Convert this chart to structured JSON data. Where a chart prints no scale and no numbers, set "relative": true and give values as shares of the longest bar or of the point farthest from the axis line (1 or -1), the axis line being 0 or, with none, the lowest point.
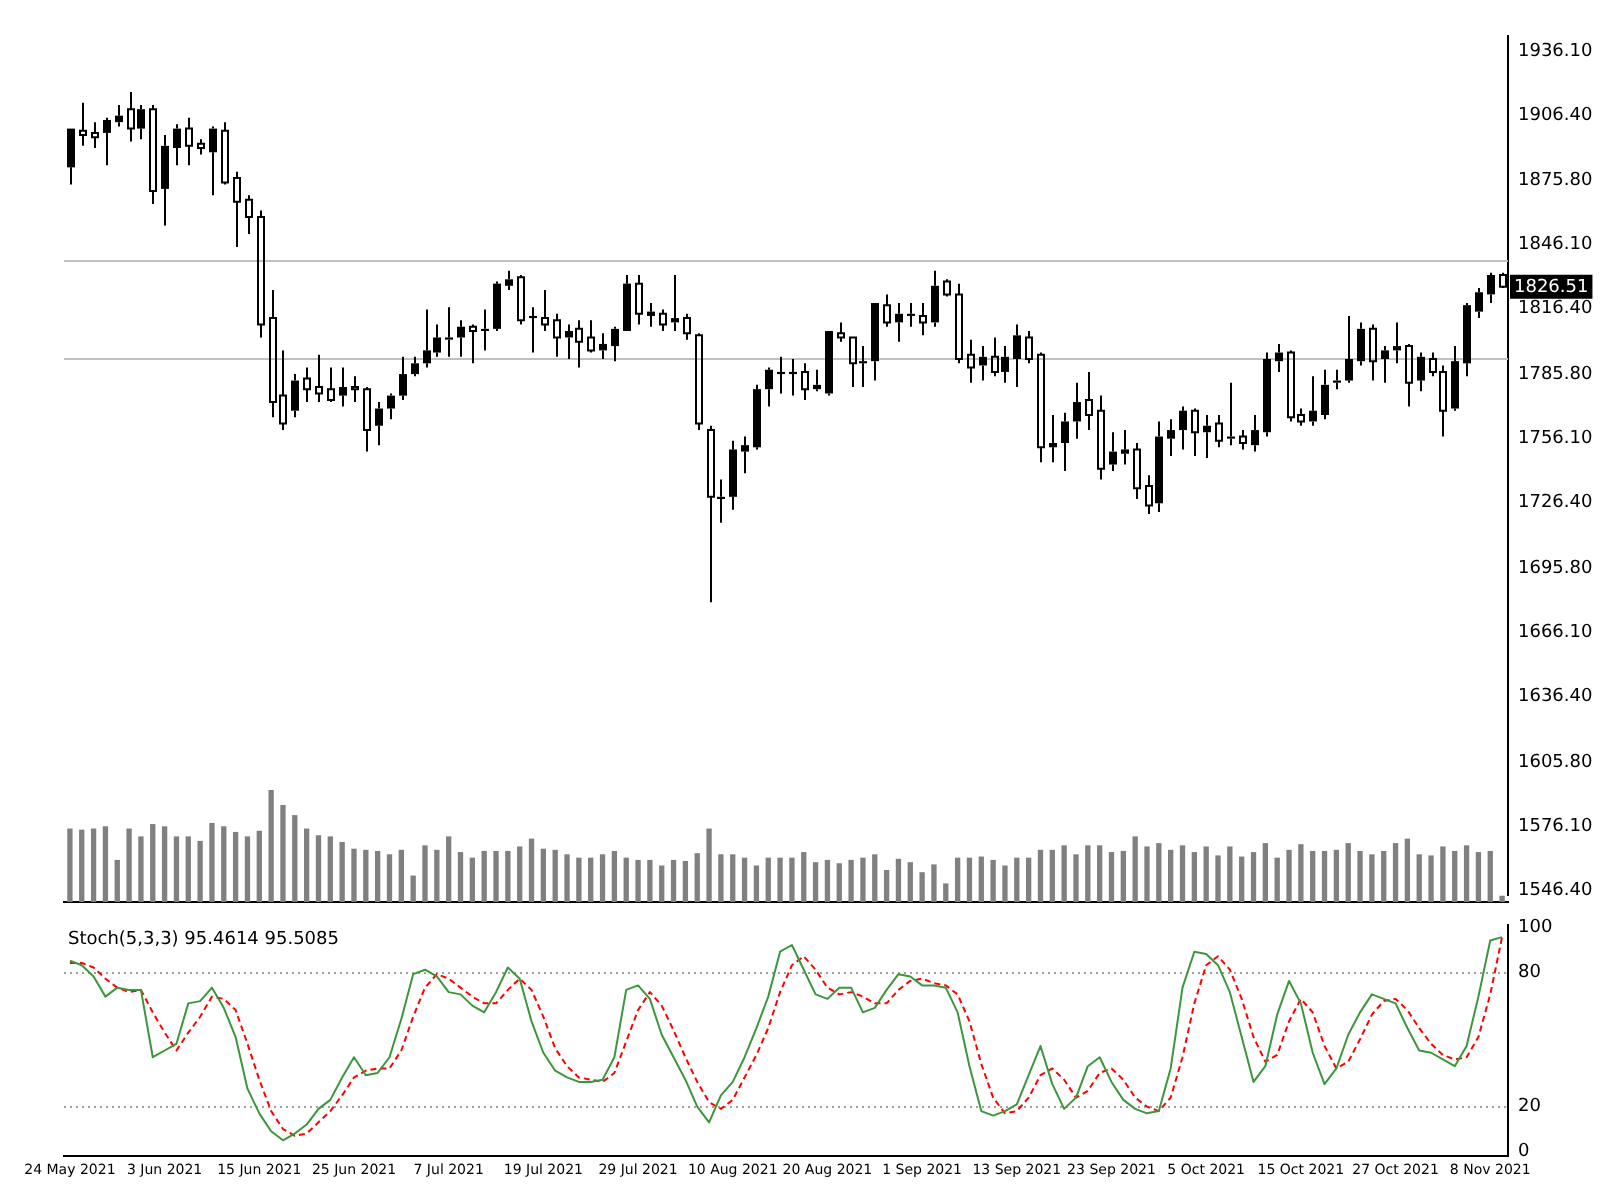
{
  "chart_data": [
    {
      "type": "candlestick",
      "color": "#000000",
      "tick_labels": "y",
      "categories": [
        null,
        null,
        null,
        null,
        null,
        null,
        null,
        null,
        null,
        null,
        null,
        null,
        null,
        null,
        null,
        null,
        null,
        null,
        null,
        null,
        null,
        null,
        null,
        null,
        null,
        null,
        null,
        null,
        null,
        null,
        null,
        null,
        null,
        null,
        null,
        null,
        null,
        null,
        null,
        null,
        null,
        null,
        null,
        null,
        null,
        null,
        null,
        null,
        null,
        null,
        null,
        null,
        null,
        null,
        null,
        null,
        null,
        null,
        null,
        null,
        null,
        null,
        null,
        null,
        null,
        null,
        null,
        null,
        null,
        null,
        null,
        null,
        null,
        null,
        null,
        null,
        null,
        null,
        null,
        null,
        null,
        null,
        null,
        null,
        null,
        null,
        null,
        null,
        null,
        null,
        null,
        null,
        null,
        null,
        null,
        null,
        null,
        null,
        null,
        null,
        null,
        null,
        null,
        null,
        null,
        null,
        null,
        null,
        null,
        null,
        null,
        null,
        null,
        null,
        null,
        null,
        null,
        null,
        null,
        null,
        null,
        null
      ],
      "ohlc": [
        [
          1882,
          1900,
          1874,
          1900
        ],
        [
          1899,
          1912,
          1892,
          1897
        ],
        [
          1898,
          1903,
          1891,
          1896
        ],
        [
          1898,
          1905,
          1883,
          1904
        ],
        [
          1903,
          1911,
          1901,
          1906
        ],
        [
          1909,
          1917,
          1894,
          1900
        ],
        [
          1900,
          1911,
          1895,
          1909
        ],
        [
          1909,
          1911,
          1865,
          1871
        ],
        [
          1872,
          1897,
          1855,
          1892
        ],
        [
          1891,
          1902,
          1883,
          1900
        ],
        [
          1900,
          1905,
          1883,
          1892
        ],
        [
          1893,
          1895,
          1888,
          1891
        ],
        [
          1889,
          1901,
          1869,
          1900
        ],
        [
          1899,
          1903,
          1874,
          1875
        ],
        [
          1877,
          1880,
          1845,
          1866
        ],
        [
          1867,
          1869,
          1851,
          1859
        ],
        [
          1859,
          1862,
          1803,
          1809
        ],
        [
          1812,
          1825,
          1766,
          1773
        ],
        [
          1776,
          1797,
          1760,
          1763
        ],
        [
          1769,
          1786,
          1766,
          1783
        ],
        [
          1784,
          1789,
          1773,
          1779
        ],
        [
          1780,
          1795,
          1773,
          1777
        ],
        [
          1779,
          1789,
          1773,
          1774
        ],
        [
          1776,
          1789,
          1771,
          1780
        ],
        [
          1780,
          1785,
          1773,
          1779
        ],
        [
          1779,
          1780,
          1750,
          1760
        ],
        [
          1762,
          1773,
          1753,
          1770
        ],
        [
          1770,
          1777,
          1765,
          1776
        ],
        [
          1776,
          1794,
          1774,
          1786
        ],
        [
          1786,
          1794,
          1785,
          1791
        ],
        [
          1791,
          1816,
          1789,
          1797
        ],
        [
          1796,
          1809,
          1794,
          1803
        ],
        [
          1802,
          1817,
          1794,
          1803
        ],
        [
          1803,
          1811,
          1794,
          1808
        ],
        [
          1808,
          1809,
          1791,
          1806
        ],
        [
          1806,
          1816,
          1797,
          1807
        ],
        [
          1807,
          1829,
          1806,
          1828
        ],
        [
          1827,
          1834,
          1825,
          1830
        ],
        [
          1831,
          1832,
          1809,
          1811
        ],
        [
          1812,
          1817,
          1796,
          1813
        ],
        [
          1812,
          1825,
          1806,
          1809
        ],
        [
          1811,
          1814,
          1794,
          1803
        ],
        [
          1803,
          1809,
          1793,
          1806
        ],
        [
          1807,
          1811,
          1789,
          1801
        ],
        [
          1803,
          1811,
          1796,
          1797
        ],
        [
          1797,
          1805,
          1793,
          1800
        ],
        [
          1799,
          1808,
          1792,
          1807
        ],
        [
          1806,
          1832,
          1806,
          1828
        ],
        [
          1828,
          1832,
          1809,
          1814
        ],
        [
          1813,
          1819,
          1808,
          1815
        ],
        [
          1814,
          1816,
          1806,
          1809
        ],
        [
          1810,
          1832,
          1806,
          1812
        ],
        [
          1812,
          1814,
          1802,
          1805
        ],
        [
          1804,
          1805,
          1760,
          1763
        ],
        [
          1760,
          1762,
          1680,
          1729
        ],
        [
          1728,
          1737,
          1717,
          1729
        ],
        [
          1729,
          1755,
          1723,
          1751
        ],
        [
          1750,
          1757,
          1740,
          1753
        ],
        [
          1752,
          1781,
          1751,
          1779
        ],
        [
          1779,
          1789,
          1771,
          1788
        ],
        [
          1786,
          1794,
          1777,
          1787
        ],
        [
          1786,
          1793,
          1776,
          1787
        ],
        [
          1787,
          1791,
          1774,
          1779
        ],
        [
          1779,
          1788,
          1778,
          1781
        ],
        [
          1777,
          1806,
          1776,
          1806
        ],
        [
          1805,
          1810,
          1801,
          1803
        ],
        [
          1803,
          1803,
          1780,
          1791
        ],
        [
          1791,
          1799,
          1780,
          1792
        ],
        [
          1792,
          1819,
          1783,
          1819
        ],
        [
          1818,
          1823,
          1808,
          1810
        ],
        [
          1810,
          1819,
          1801,
          1814
        ],
        [
          1813,
          1819,
          1808,
          1814
        ],
        [
          1813,
          1819,
          1804,
          1810
        ],
        [
          1810,
          1834,
          1808,
          1827
        ],
        [
          1829,
          1830,
          1822,
          1823
        ],
        [
          1823,
          1828,
          1791,
          1793
        ],
        [
          1795,
          1802,
          1782,
          1789
        ],
        [
          1790,
          1799,
          1783,
          1794
        ],
        [
          1794,
          1803,
          1785,
          1787
        ],
        [
          1787,
          1799,
          1782,
          1794
        ],
        [
          1793,
          1809,
          1780,
          1804
        ],
        [
          1803,
          1806,
          1791,
          1793
        ],
        [
          1795,
          1796,
          1745,
          1752
        ],
        [
          1752,
          1767,
          1745,
          1754
        ],
        [
          1754,
          1768,
          1741,
          1764
        ],
        [
          1764,
          1782,
          1756,
          1773
        ],
        [
          1774,
          1787,
          1760,
          1767
        ],
        [
          1769,
          1776,
          1737,
          1742
        ],
        [
          1744,
          1759,
          1741,
          1750
        ],
        [
          1749,
          1760,
          1744,
          1751
        ],
        [
          1751,
          1754,
          1728,
          1733
        ],
        [
          1734,
          1739,
          1721,
          1725
        ],
        [
          1726,
          1764,
          1722,
          1757
        ],
        [
          1756,
          1765,
          1748,
          1760
        ],
        [
          1760,
          1771,
          1751,
          1769
        ],
        [
          1769,
          1770,
          1748,
          1759
        ],
        [
          1759,
          1767,
          1747,
          1762
        ],
        [
          1763,
          1767,
          1752,
          1755
        ],
        [
          1756,
          1782,
          1753,
          1757
        ],
        [
          1757,
          1760,
          1751,
          1754
        ],
        [
          1753,
          1767,
          1750,
          1760
        ],
        [
          1759,
          1796,
          1757,
          1793
        ],
        [
          1792,
          1800,
          1787,
          1796
        ],
        [
          1796,
          1797,
          1764,
          1766
        ],
        [
          1767,
          1770,
          1762,
          1764
        ],
        [
          1764,
          1785,
          1762,
          1769
        ],
        [
          1767,
          1788,
          1765,
          1781
        ],
        [
          1782,
          1788,
          1779,
          1783
        ],
        [
          1783,
          1813,
          1782,
          1793
        ],
        [
          1792,
          1810,
          1790,
          1807
        ],
        [
          1807,
          1809,
          1783,
          1792
        ],
        [
          1793,
          1799,
          1782,
          1797
        ],
        [
          1797,
          1810,
          1791,
          1799
        ],
        [
          1799,
          1800,
          1771,
          1782
        ],
        [
          1783,
          1796,
          1778,
          1794
        ],
        [
          1793,
          1796,
          1785,
          1787
        ],
        [
          1787,
          1790,
          1757,
          1769
        ],
        [
          1770,
          1799,
          1769,
          1792
        ],
        [
          1791,
          1819,
          1785,
          1818
        ],
        [
          1815,
          1826,
          1812,
          1824
        ],
        [
          1823,
          1833,
          1819,
          1832
        ],
        [
          1832,
          1833,
          1826,
          1826.51
        ]
      ],
      "ylim": [
        1544,
        1943
      ],
      "yticks": [
        {
          "value": 1546.4,
          "label": "1546.40"
        },
        {
          "value": 1576.1,
          "label": "1576.10"
        },
        {
          "value": 1605.8,
          "label": "1605.80"
        },
        {
          "value": 1636.4,
          "label": "1636.40"
        },
        {
          "value": 1666.1,
          "label": "1666.10"
        },
        {
          "value": 1695.8,
          "label": "1695.80"
        },
        {
          "value": 1726.4,
          "label": "1726.40"
        },
        {
          "value": 1756.1,
          "label": "1756.10"
        },
        {
          "value": 1785.8,
          "label": "1785.80"
        },
        {
          "value": 1816.4,
          "label": "1816.40"
        },
        {
          "value": 1846.1,
          "label": "1846.10"
        },
        {
          "value": 1875.8,
          "label": "1875.80"
        },
        {
          "value": 1906.4,
          "label": "1906.40"
        },
        {
          "value": 1936.1,
          "label": "1936.10"
        }
      ],
      "ref_lines": [
        {
          "axis": "y",
          "value": 1839.4,
          "color": "#c0c0c0"
        },
        {
          "axis": "y",
          "value": 1793.3,
          "color": "#c0c0c0"
        }
      ],
      "annotations": [
        "1826.51"
      ]
    },
    {
      "type": "bar",
      "relative": true,
      "color": "#808080",
      "tick_labels": false,
      "categories": [
        null,
        null,
        null,
        null,
        null,
        null,
        null,
        null,
        null,
        null,
        null,
        null,
        null,
        null,
        null,
        null,
        null,
        null,
        null,
        null,
        null,
        null,
        null,
        null,
        null,
        null,
        null,
        null,
        null,
        null,
        null,
        null,
        null,
        null,
        null,
        null,
        null,
        null,
        null,
        null,
        null,
        null,
        null,
        null,
        null,
        null,
        null,
        null,
        null,
        null,
        null,
        null,
        null,
        null,
        null,
        null,
        null,
        null,
        null,
        null,
        null,
        null,
        null,
        null,
        null,
        null,
        null,
        null,
        null,
        null,
        null,
        null,
        null,
        null,
        null,
        null,
        null,
        null,
        null,
        null,
        null,
        null,
        null,
        null,
        null,
        null,
        null,
        null,
        null,
        null,
        null,
        null,
        null,
        null,
        null,
        null,
        null,
        null,
        null,
        null,
        null,
        null,
        null,
        null,
        null,
        null,
        null,
        null,
        null,
        null,
        null,
        null,
        null,
        null,
        null,
        null,
        null,
        null,
        null,
        null,
        null,
        null
      ],
      "values": [
        0.65,
        0.64,
        0.65,
        0.67,
        0.37,
        0.65,
        0.58,
        0.69,
        0.67,
        0.58,
        0.58,
        0.54,
        0.7,
        0.67,
        0.62,
        0.58,
        0.63,
        1,
        0.86,
        0.77,
        0.65,
        0.59,
        0.58,
        0.53,
        0.47,
        0.46,
        0.45,
        0.42,
        0.46,
        0.23,
        0.5,
        0.46,
        0.58,
        0.44,
        0.39,
        0.45,
        0.45,
        0.45,
        0.49,
        0.56,
        0.47,
        0.46,
        0.42,
        0.39,
        0.39,
        0.42,
        0.45,
        0.39,
        0.37,
        0.37,
        0.32,
        0.37,
        0.36,
        0.43,
        0.65,
        0.42,
        0.42,
        0.39,
        0.32,
        0.39,
        0.39,
        0.39,
        0.44,
        0.35,
        0.37,
        0.34,
        0.37,
        0.39,
        0.42,
        0.28,
        0.38,
        0.35,
        0.26,
        0.33,
        0.16,
        0.39,
        0.39,
        0.4,
        0.37,
        0.32,
        0.39,
        0.39,
        0.46,
        0.46,
        0.5,
        0.42,
        0.5,
        0.5,
        0.44,
        0.45,
        0.58,
        0.49,
        0.52,
        0.46,
        0.5,
        0.44,
        0.49,
        0.41,
        0.49,
        0.4,
        0.44,
        0.52,
        0.39,
        0.46,
        0.51,
        0.45,
        0.45,
        0.46,
        0.52,
        0.45,
        0.42,
        0.45,
        0.52,
        0.56,
        0.42,
        0.41,
        0.49,
        0.45,
        0.5,
        0.44,
        0.45,
        0.05
      ]
    },
    {
      "type": "line",
      "title": "Stoch(5,3,3) 95.4614 95.5085",
      "marker": "none",
      "categories": [
        "24 May 2021",
        null,
        null,
        null,
        null,
        null,
        null,
        null,
        "3 Jun 2021",
        null,
        null,
        null,
        null,
        null,
        null,
        null,
        "15 Jun 2021",
        null,
        null,
        null,
        null,
        null,
        null,
        null,
        "25 Jun 2021",
        null,
        null,
        null,
        null,
        null,
        null,
        null,
        "7 Jul 2021",
        null,
        null,
        null,
        null,
        null,
        null,
        null,
        "19 Jul 2021",
        null,
        null,
        null,
        null,
        null,
        null,
        null,
        "29 Jul 2021",
        null,
        null,
        null,
        null,
        null,
        null,
        null,
        "10 Aug 2021",
        null,
        null,
        null,
        null,
        null,
        null,
        null,
        "20 Aug 2021",
        null,
        null,
        null,
        null,
        null,
        null,
        null,
        "1 Sep 2021",
        null,
        null,
        null,
        null,
        null,
        null,
        null,
        "13 Sep 2021",
        null,
        null,
        null,
        null,
        null,
        null,
        null,
        "23 Sep 2021",
        null,
        null,
        null,
        null,
        null,
        null,
        null,
        "5 Oct 2021",
        null,
        null,
        null,
        null,
        null,
        null,
        null,
        "15 Oct 2021",
        null,
        null,
        null,
        null,
        null,
        null,
        null,
        "27 Oct 2021",
        null,
        null,
        null,
        null,
        null,
        null,
        null,
        "8 Nov 2021",
        null
      ],
      "series": [
        {
          "color": "#3c963c",
          "line_style": "solid",
          "values": [
            85,
            83,
            78,
            69,
            73,
            72,
            72,
            42,
            45,
            48,
            66,
            67,
            73,
            64,
            51,
            28,
            17,
            9,
            5,
            8,
            12,
            19,
            23,
            33,
            42,
            34,
            35,
            42,
            59,
            79,
            81,
            78,
            71,
            70,
            65,
            62,
            71,
            82,
            77,
            58,
            44,
            36,
            33,
            31,
            31,
            32,
            42,
            72,
            74,
            68,
            52,
            42,
            32,
            20,
            13,
            25,
            31,
            42,
            55,
            69,
            89,
            92,
            81,
            70,
            68,
            73,
            73,
            62,
            64,
            72,
            79,
            78,
            74,
            74,
            73,
            62,
            38,
            18,
            16,
            18,
            21,
            34,
            47,
            30,
            19,
            24,
            38,
            42,
            31,
            23,
            19,
            17,
            18,
            37,
            73,
            89,
            88,
            83,
            71,
            51,
            31,
            38,
            61,
            76,
            66,
            44,
            30,
            37,
            52,
            62,
            70,
            68,
            66,
            55,
            45,
            44,
            41,
            38,
            47,
            69,
            94,
            95.5
          ]
        },
        {
          "color": "#ff0000",
          "line_style": "dashed",
          "values": [
            84,
            84,
            82,
            77,
            73,
            71,
            72,
            62,
            53,
            45,
            53,
            60,
            69,
            68,
            63,
            48,
            32,
            18,
            10,
            7,
            8,
            13,
            18,
            25,
            33,
            36,
            37,
            37,
            45,
            60,
            73,
            79,
            77,
            73,
            69,
            66,
            66,
            72,
            77,
            72,
            60,
            46,
            38,
            33,
            32,
            31,
            35,
            49,
            63,
            71,
            65,
            54,
            42,
            31,
            22,
            19,
            23,
            33,
            43,
            55,
            71,
            83,
            87,
            81,
            73,
            70,
            71,
            69,
            66,
            66,
            72,
            76,
            77,
            75,
            74,
            70,
            58,
            39,
            24,
            17,
            18,
            24,
            34,
            37,
            32,
            24,
            27,
            35,
            37,
            32,
            24,
            20,
            18,
            24,
            42,
            66,
            83,
            87,
            81,
            68,
            51,
            40,
            43,
            58,
            68,
            62,
            47,
            37,
            40,
            50,
            61,
            67,
            68,
            63,
            55,
            48,
            43,
            41,
            42,
            51,
            70,
            95.5
          ]
        }
      ],
      "ylim": [
        -2,
        101
      ],
      "yticks": [
        0,
        20,
        80,
        100
      ],
      "ref_lines": [
        {
          "axis": "y",
          "value": 20,
          "color": "#a0a0a0",
          "line_style": "dotted"
        },
        {
          "axis": "y",
          "value": 80,
          "color": "#a0a0a0",
          "line_style": "dotted"
        }
      ]
    }
  ]
}
